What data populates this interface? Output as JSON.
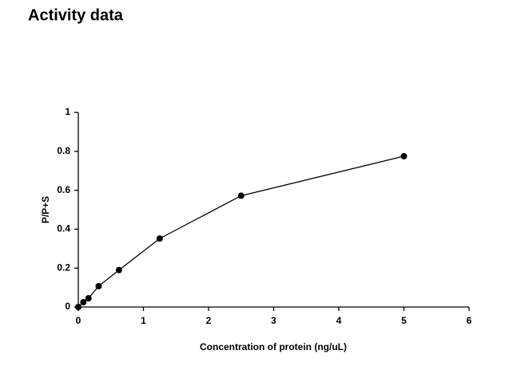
{
  "chart_data": {
    "type": "line",
    "title": "Activity data",
    "x_label": "Concentration of protein (ng/uL)",
    "y_label": "P/P+S",
    "x": [
      0,
      0.078,
      0.156,
      0.3125,
      0.625,
      1.25,
      2.5,
      5
    ],
    "series": [
      {
        "color": "#000000",
        "values": [
          0,
          0.025,
          0.045,
          0.107,
          0.19,
          0.352,
          0.572,
          0.775
        ]
      }
    ],
    "xlim": [
      0,
      6
    ],
    "xticks": [
      0,
      1,
      2,
      3,
      4,
      5,
      6
    ],
    "ylim": [
      0,
      1
    ],
    "yticks": [
      0,
      0.2,
      0.4,
      0.6,
      0.8,
      1
    ],
    "grid": false
  }
}
